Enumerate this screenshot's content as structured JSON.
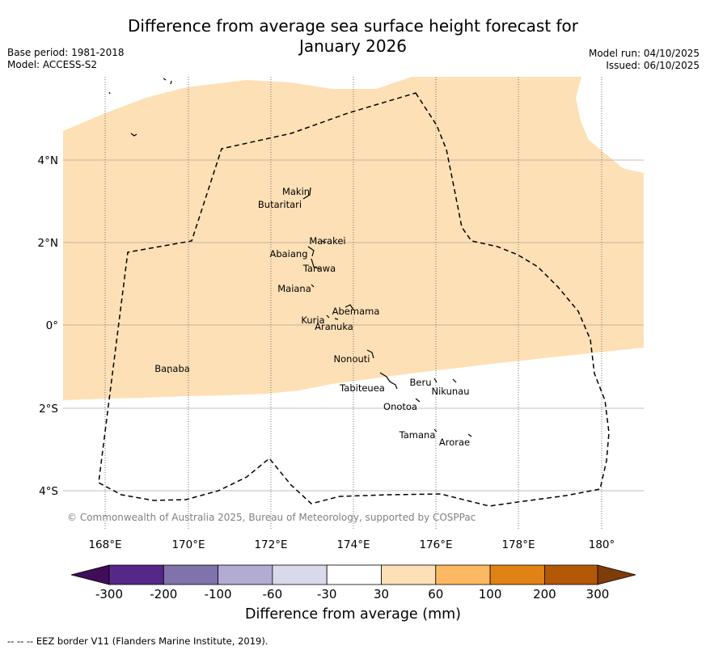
{
  "title_line1": "Difference from average sea surface height forecast for",
  "title_line2": "January 2026",
  "base_period": "Base period: 1981-2018",
  "model": "Model: ACCESS-S2",
  "model_run": "Model run: 04/10/2025",
  "issued": "Issued: 06/10/2025",
  "copyright": "© Commonwealth of Australia 2025, Bureau of Meteorology, supported by COSPPac",
  "lon_ticks": [
    "168°E",
    "170°E",
    "172°E",
    "174°E",
    "176°E",
    "178°E",
    "180°"
  ],
  "lat_ticks": [
    "4°N",
    "2°N",
    "0°",
    "2°S",
    "4°S"
  ],
  "colorbar": {
    "label": "Difference from average (mm)",
    "tick_labels": [
      "-300",
      "-200",
      "-100",
      "-60",
      "-30",
      "30",
      "60",
      "100",
      "200",
      "300"
    ],
    "colors": [
      "#3f0d59",
      "#542788",
      "#8073ac",
      "#b2abd2",
      "#d8daeb",
      "#ffffff",
      "#fee0b6",
      "#fdb863",
      "#e08214",
      "#b35806",
      "#7f3b08"
    ]
  },
  "islands": [
    "Makin",
    "Butaritari",
    "Marakei",
    "Abaiang",
    "Tarawa",
    "Maiana",
    "Abemama",
    "Kuria",
    "Aranuka",
    "Nonouti",
    "Banaba",
    "Tabiteuea",
    "Beru",
    "Nikunau",
    "Onotoa",
    "Tamana",
    "Arorae"
  ],
  "footnote": "--  --  -- EEZ border V11 (Flanders Marine Institute, 2019)."
}
